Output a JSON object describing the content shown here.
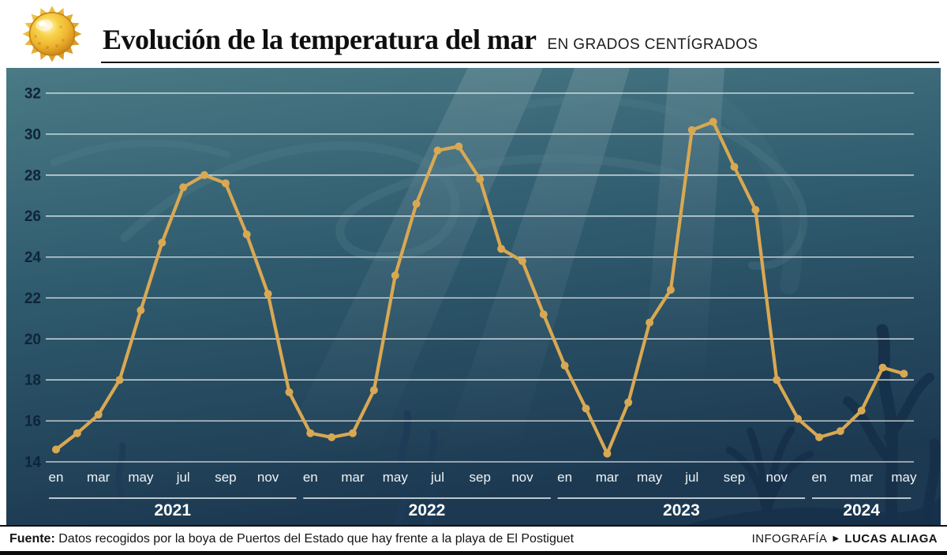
{
  "header": {
    "title": "Evolución de la temperatura del mar",
    "subtitle": "EN GRADOS CENTÍGRADOS"
  },
  "footer": {
    "source_label": "Fuente:",
    "source_text": "Datos recogidos por la boya de Puertos del Estado que hay frente a la playa de El Postiguet",
    "credit_label": "INFOGRAFÍA",
    "credit_arrow": "▶",
    "credit_name": "LUCAS ALIAGA"
  },
  "chart_data": {
    "type": "line",
    "title": "Evolución de la temperatura del mar",
    "unit_label": "EN GRADOS CENTÍGRADOS",
    "ylim": [
      14,
      32
    ],
    "yticks": [
      14,
      16,
      18,
      20,
      22,
      24,
      26,
      28,
      30,
      32
    ],
    "grid": true,
    "legend": false,
    "month_tick_labels": [
      "en",
      "mar",
      "may",
      "jul",
      "sep",
      "nov"
    ],
    "colors": {
      "line": "#d9a852",
      "grid": "#ffffff",
      "y_label": "#0f2438",
      "month_label": "#eef3f5",
      "year_label": "#ffffff",
      "sea_top": "#4a7a85",
      "sea_bottom": "#1c3951"
    },
    "years": [
      {
        "label": "2021",
        "values": [
          14.6,
          15.4,
          16.3,
          18.0,
          21.4,
          24.7,
          27.4,
          28.0,
          27.6,
          25.1,
          22.2,
          17.4
        ]
      },
      {
        "label": "2022",
        "values": [
          15.4,
          15.2,
          15.4,
          17.5,
          23.1,
          26.6,
          29.2,
          29.4,
          27.8,
          24.4,
          23.8,
          21.2
        ]
      },
      {
        "label": "2023",
        "values": [
          18.7,
          16.6,
          14.4,
          16.9,
          20.8,
          22.4,
          30.2,
          30.6,
          28.4,
          26.3,
          18.0,
          16.1
        ]
      },
      {
        "label": "2024",
        "values": [
          15.2,
          15.5,
          16.5,
          18.6,
          18.3
        ]
      }
    ]
  }
}
